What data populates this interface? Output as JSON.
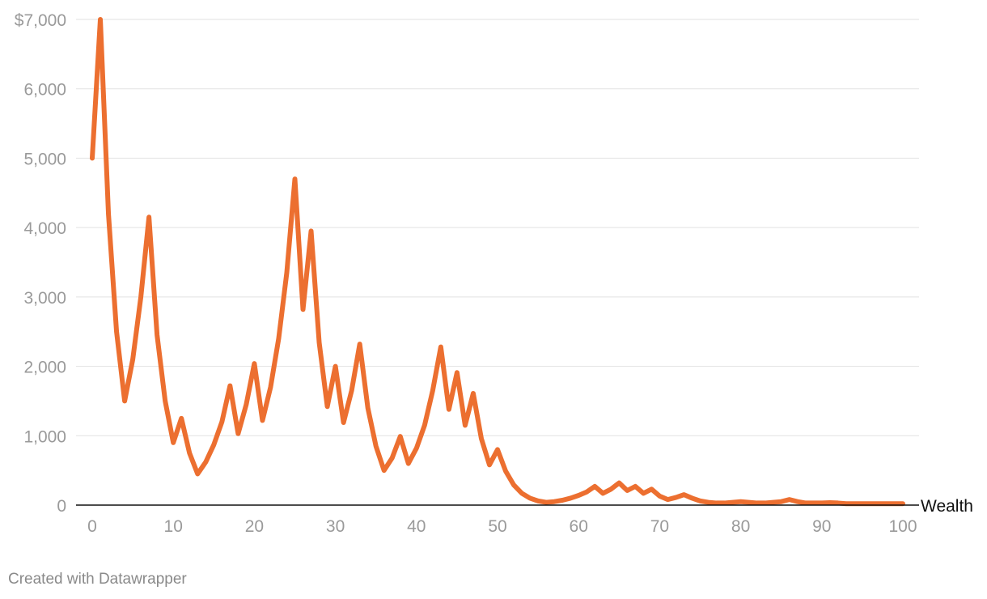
{
  "chart_data": {
    "type": "line",
    "title": "",
    "xlabel": "Wealth",
    "ylabel": "",
    "xlim": [
      0,
      100
    ],
    "ylim": [
      0,
      7000
    ],
    "grid": "horizontal",
    "legend": "none",
    "x_ticks": [
      {
        "value": 0,
        "label": "0"
      },
      {
        "value": 10,
        "label": "10"
      },
      {
        "value": 20,
        "label": "20"
      },
      {
        "value": 30,
        "label": "30"
      },
      {
        "value": 40,
        "label": "40"
      },
      {
        "value": 50,
        "label": "50"
      },
      {
        "value": 60,
        "label": "60"
      },
      {
        "value": 70,
        "label": "70"
      },
      {
        "value": 80,
        "label": "80"
      },
      {
        "value": 90,
        "label": "90"
      },
      {
        "value": 100,
        "label": "100"
      }
    ],
    "y_ticks": [
      {
        "value": 0,
        "label": "0"
      },
      {
        "value": 1000,
        "label": "1,000"
      },
      {
        "value": 2000,
        "label": "2,000"
      },
      {
        "value": 3000,
        "label": "3,000"
      },
      {
        "value": 4000,
        "label": "4,000"
      },
      {
        "value": 5000,
        "label": "5,000"
      },
      {
        "value": 6000,
        "label": "6,000"
      },
      {
        "value": 7000,
        "label": "$7,000"
      }
    ],
    "series": [
      {
        "color": "#ec6f30",
        "x": [
          0,
          1,
          2,
          3,
          4,
          5,
          6,
          7,
          8,
          9,
          10,
          11,
          12,
          13,
          14,
          15,
          16,
          17,
          18,
          19,
          20,
          21,
          22,
          23,
          24,
          25,
          26,
          27,
          28,
          29,
          30,
          31,
          32,
          33,
          34,
          35,
          36,
          37,
          38,
          39,
          40,
          41,
          42,
          43,
          44,
          45,
          46,
          47,
          48,
          49,
          50,
          51,
          52,
          53,
          54,
          55,
          56,
          57,
          58,
          59,
          60,
          61,
          62,
          63,
          64,
          65,
          66,
          67,
          68,
          69,
          70,
          71,
          72,
          73,
          74,
          75,
          76,
          77,
          78,
          79,
          80,
          81,
          82,
          83,
          84,
          85,
          86,
          87,
          88,
          89,
          90,
          91,
          92,
          93,
          94,
          95,
          96,
          97,
          98,
          99,
          100
        ],
        "values": [
          5000,
          7000,
          4200,
          2500,
          1500,
          2100,
          3000,
          4150,
          2450,
          1500,
          900,
          1250,
          750,
          450,
          620,
          870,
          1200,
          1720,
          1030,
          1450,
          2040,
          1220,
          1700,
          2400,
          3350,
          4700,
          2820,
          3950,
          2340,
          1420,
          2000,
          1190,
          1650,
          2320,
          1400,
          850,
          500,
          680,
          990,
          600,
          820,
          1150,
          1650,
          2280,
          1380,
          1910,
          1150,
          1610,
          960,
          580,
          800,
          490,
          290,
          170,
          100,
          60,
          40,
          50,
          70,
          100,
          140,
          190,
          270,
          170,
          230,
          320,
          210,
          270,
          170,
          230,
          130,
          80,
          110,
          150,
          100,
          60,
          40,
          30,
          30,
          40,
          50,
          40,
          30,
          30,
          40,
          50,
          80,
          50,
          30,
          30,
          30,
          35,
          30,
          20,
          20,
          20,
          20,
          20,
          20,
          20,
          20
        ]
      }
    ]
  },
  "credit": "Created with Datawrapper"
}
